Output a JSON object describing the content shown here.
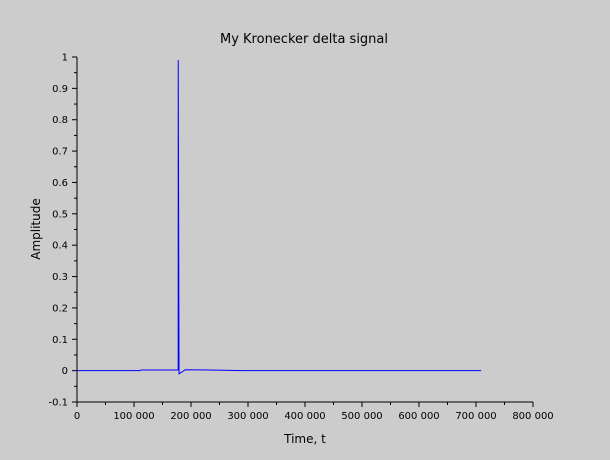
{
  "chart_data": {
    "type": "line",
    "title": "My Kronecker delta signal",
    "xlabel": "Time, t",
    "ylabel": "Amplitude",
    "xlim": [
      0,
      800000
    ],
    "ylim": [
      -0.1,
      1
    ],
    "x_ticks": [
      0,
      100000,
      200000,
      300000,
      400000,
      500000,
      600000,
      700000,
      800000
    ],
    "x_tick_labels": [
      "0",
      "100 000",
      "200 000",
      "300 000",
      "400 000",
      "500 000",
      "600 000",
      "700 000",
      "800 000"
    ],
    "y_ticks": [
      -0.1,
      0,
      0.1,
      0.2,
      0.3,
      0.4,
      0.5,
      0.6,
      0.7,
      0.8,
      0.9,
      1
    ],
    "y_tick_labels": [
      "-0.1",
      "0",
      "0.1",
      "0.2",
      "0.3",
      "0.4",
      "0.5",
      "0.6",
      "0.7",
      "0.8",
      "0.9",
      "1"
    ],
    "grid": false,
    "series": [
      {
        "color": "#0000ff",
        "x": [
          0,
          110000,
          112000,
          140000,
          176000,
          177500,
          177600,
          179000,
          190000,
          230000,
          270000,
          290000,
          300000,
          709000
        ],
        "y": [
          0,
          0,
          0.002,
          0.002,
          0.002,
          0.002,
          0.99,
          -0.01,
          0.003,
          0.002,
          0.001,
          0,
          0,
          0
        ]
      }
    ]
  }
}
